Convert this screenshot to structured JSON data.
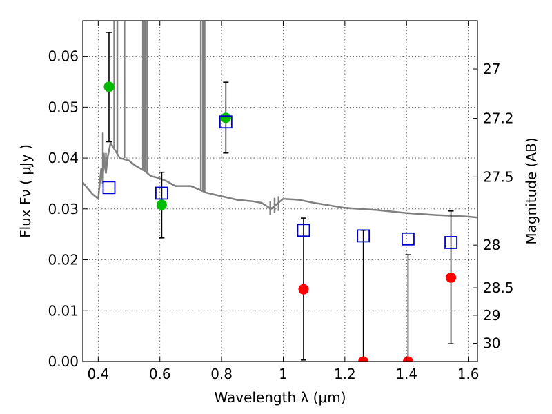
{
  "chart_data": {
    "type": "scatter",
    "xlabel": "Wavelength  λ (μm)",
    "ylabel": "Flux  Fν  ( μJy )",
    "y2label": "Magnitude (AB)",
    "xlim": [
      0.35,
      1.63
    ],
    "ylim": [
      0.0,
      0.067
    ],
    "x_ticks": [
      0.4,
      0.6,
      0.8,
      1.0,
      1.2,
      1.4,
      1.6
    ],
    "x_tick_labels": [
      "0.4",
      "0.6",
      "0.8",
      "1",
      "1.2",
      "1.4",
      "1.6"
    ],
    "y_ticks": [
      0.0,
      0.01,
      0.02,
      0.03,
      0.04,
      0.05,
      0.06
    ],
    "y_tick_labels": [
      "0.00",
      "0.01",
      "0.02",
      "0.03",
      "0.04",
      "0.05",
      "0.06"
    ],
    "y2_ticks": [
      {
        "label": "27",
        "flux": 0.0575
      },
      {
        "label": "27.2",
        "flux": 0.0478
      },
      {
        "label": "27.5",
        "flux": 0.0363
      },
      {
        "label": "28",
        "flux": 0.0229
      },
      {
        "label": "28.5",
        "flux": 0.0145
      },
      {
        "label": "29",
        "flux": 0.0091
      },
      {
        "label": "30",
        "flux": 0.0036
      }
    ],
    "grid": true,
    "colors": {
      "spectrum": "#808080",
      "detected": "#00bb00",
      "upper": "#ff0000",
      "model": "#0000cc",
      "errorbar": "#000000"
    },
    "series": [
      {
        "kind": "line",
        "role": "spectrum",
        "x": [
          0.35,
          0.38,
          0.4,
          0.41,
          0.415,
          0.418,
          0.42,
          0.425,
          0.43,
          0.44,
          0.45,
          0.47,
          0.5,
          0.52,
          0.55,
          0.57,
          0.6,
          0.62,
          0.65,
          0.7,
          0.72,
          0.75,
          0.8,
          0.85,
          0.9,
          0.93,
          0.96,
          0.98,
          1.0,
          1.05,
          1.1,
          1.2,
          1.3,
          1.4,
          1.5,
          1.6,
          1.63
        ],
        "y": [
          0.0352,
          0.033,
          0.032,
          0.038,
          0.035,
          0.041,
          0.039,
          0.037,
          0.04,
          0.043,
          0.042,
          0.04,
          0.0395,
          0.0385,
          0.0375,
          0.0365,
          0.036,
          0.0355,
          0.0345,
          0.0345,
          0.034,
          0.0332,
          0.0325,
          0.0318,
          0.0315,
          0.0312,
          0.03,
          0.031,
          0.032,
          0.0318,
          0.0312,
          0.0302,
          0.0298,
          0.0292,
          0.0288,
          0.0285,
          0.0283
        ]
      },
      {
        "kind": "spikes",
        "role": "spectrum",
        "lines": [
          {
            "x": 0.415,
            "y0": 0.035,
            "y1": 0.045
          },
          {
            "x": 0.425,
            "y0": 0.037,
            "y1": 0.041
          },
          {
            "x": 0.452,
            "y0": 0.042,
            "y1": 0.07
          },
          {
            "x": 0.462,
            "y0": 0.041,
            "y1": 0.07
          },
          {
            "x": 0.485,
            "y0": 0.04,
            "y1": 0.07
          },
          {
            "x": 0.545,
            "y0": 0.0375,
            "y1": 0.07
          },
          {
            "x": 0.552,
            "y0": 0.0372,
            "y1": 0.07
          },
          {
            "x": 0.559,
            "y0": 0.037,
            "y1": 0.07
          },
          {
            "x": 0.733,
            "y0": 0.0338,
            "y1": 0.07
          },
          {
            "x": 0.74,
            "y0": 0.0336,
            "y1": 0.07
          },
          {
            "x": 0.745,
            "y0": 0.0334,
            "y1": 0.07
          },
          {
            "x": 0.958,
            "y0": 0.0288,
            "y1": 0.0315
          },
          {
            "x": 0.972,
            "y0": 0.0292,
            "y1": 0.0322
          },
          {
            "x": 0.985,
            "y0": 0.0296,
            "y1": 0.0325
          }
        ]
      },
      {
        "kind": "points",
        "role": "detected",
        "marker": "circle",
        "x": [
          0.435,
          0.606,
          0.814
        ],
        "y": [
          0.054,
          0.0308,
          0.0479
        ],
        "err_low": [
          0.0432,
          0.0243,
          0.041
        ],
        "err_high": [
          0.0647,
          0.0372,
          0.0549
        ]
      },
      {
        "kind": "points",
        "role": "upper",
        "marker": "circle",
        "x": [
          1.066,
          1.26,
          1.405,
          1.544
        ],
        "y": [
          0.0142,
          0.0,
          0.0,
          0.0165
        ],
        "err_low": [
          0.0003,
          0.0,
          0.0,
          0.0035
        ],
        "err_high": [
          0.0282,
          0.0258,
          0.021,
          0.0296
        ]
      },
      {
        "kind": "points",
        "role": "model",
        "marker": "square",
        "x": [
          0.435,
          0.606,
          0.814,
          1.066,
          1.26,
          1.405,
          1.544
        ],
        "y": [
          0.0342,
          0.0331,
          0.0471,
          0.0258,
          0.0247,
          0.0241,
          0.0234
        ]
      }
    ]
  }
}
